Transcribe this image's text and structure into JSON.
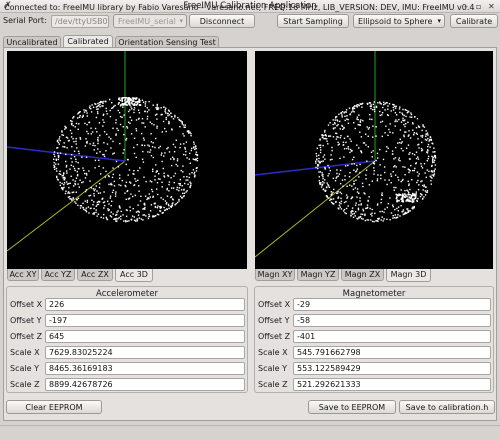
{
  "window": {
    "title": "FreeIMU Calibration Application",
    "icon_text": "✗",
    "close_glyph": "✕",
    "maximize_glyph": "▫",
    "minimize_glyph": "–"
  },
  "toolbar": {
    "serial_port_label": "Serial Port:",
    "serial_port_value": "/dev/ttyUSB0",
    "device_select": "FreeIMU_serial",
    "disconnect_label": "Disconnect",
    "start_sampling_label": "Start Sampling",
    "fit_method_select": "Ellipsoid to Sphere",
    "calibrate_label": "Calibrate"
  },
  "tabs": {
    "uncalibrated": "Uncalibrated",
    "calibrated": "Calibrated",
    "orientation": "Orientation Sensing Test"
  },
  "acc_tabs": {
    "xy": "Acc XY",
    "yz": "Acc YZ",
    "zx": "Acc ZX",
    "d3": "Acc 3D"
  },
  "magn_tabs": {
    "xy": "Magn XY",
    "yz": "Magn YZ",
    "zx": "Magn ZX",
    "d3": "Magn 3D"
  },
  "accelerometer": {
    "title": "Accelerometer",
    "offset_x_label": "Offset X",
    "offset_x": "226",
    "offset_y_label": "Offset Y",
    "offset_y": "-197",
    "offset_z_label": "Offset Z",
    "offset_z": "645",
    "scale_x_label": "Scale X",
    "scale_x": "7629.83025224",
    "scale_y_label": "Scale Y",
    "scale_y": "8465.36169183",
    "scale_z_label": "Scale Z",
    "scale_z": "8899.42678726"
  },
  "magnetometer": {
    "title": "Magnetometer",
    "offset_x_label": "Offset X",
    "offset_x": "-29",
    "offset_y_label": "Offset Y",
    "offset_y": "-58",
    "offset_z_label": "Offset Z",
    "offset_z": "-401",
    "scale_x_label": "Scale X",
    "scale_x": "545.791662798",
    "scale_y_label": "Scale Y",
    "scale_y": "553.122589429",
    "scale_z_label": "Scale Z",
    "scale_z": "521.292621333"
  },
  "buttons": {
    "clear_eeprom": "Clear EEPROM",
    "save_eeprom": "Save to EEPROM",
    "save_calibration_h": "Save to calibration.h"
  },
  "status": {
    "text": "Connected to: FreeIMU library by Fabio Varesano - varesano.net, FREQ:16 MHz, LIB_VERSION: DEV, IMU: FreeIMU v0.4"
  },
  "colors": {
    "axis_blue": "#2a2ad0",
    "axis_green": "#1fa51f",
    "axis_yellow": "#b4b42a",
    "point": "#ffffff"
  }
}
